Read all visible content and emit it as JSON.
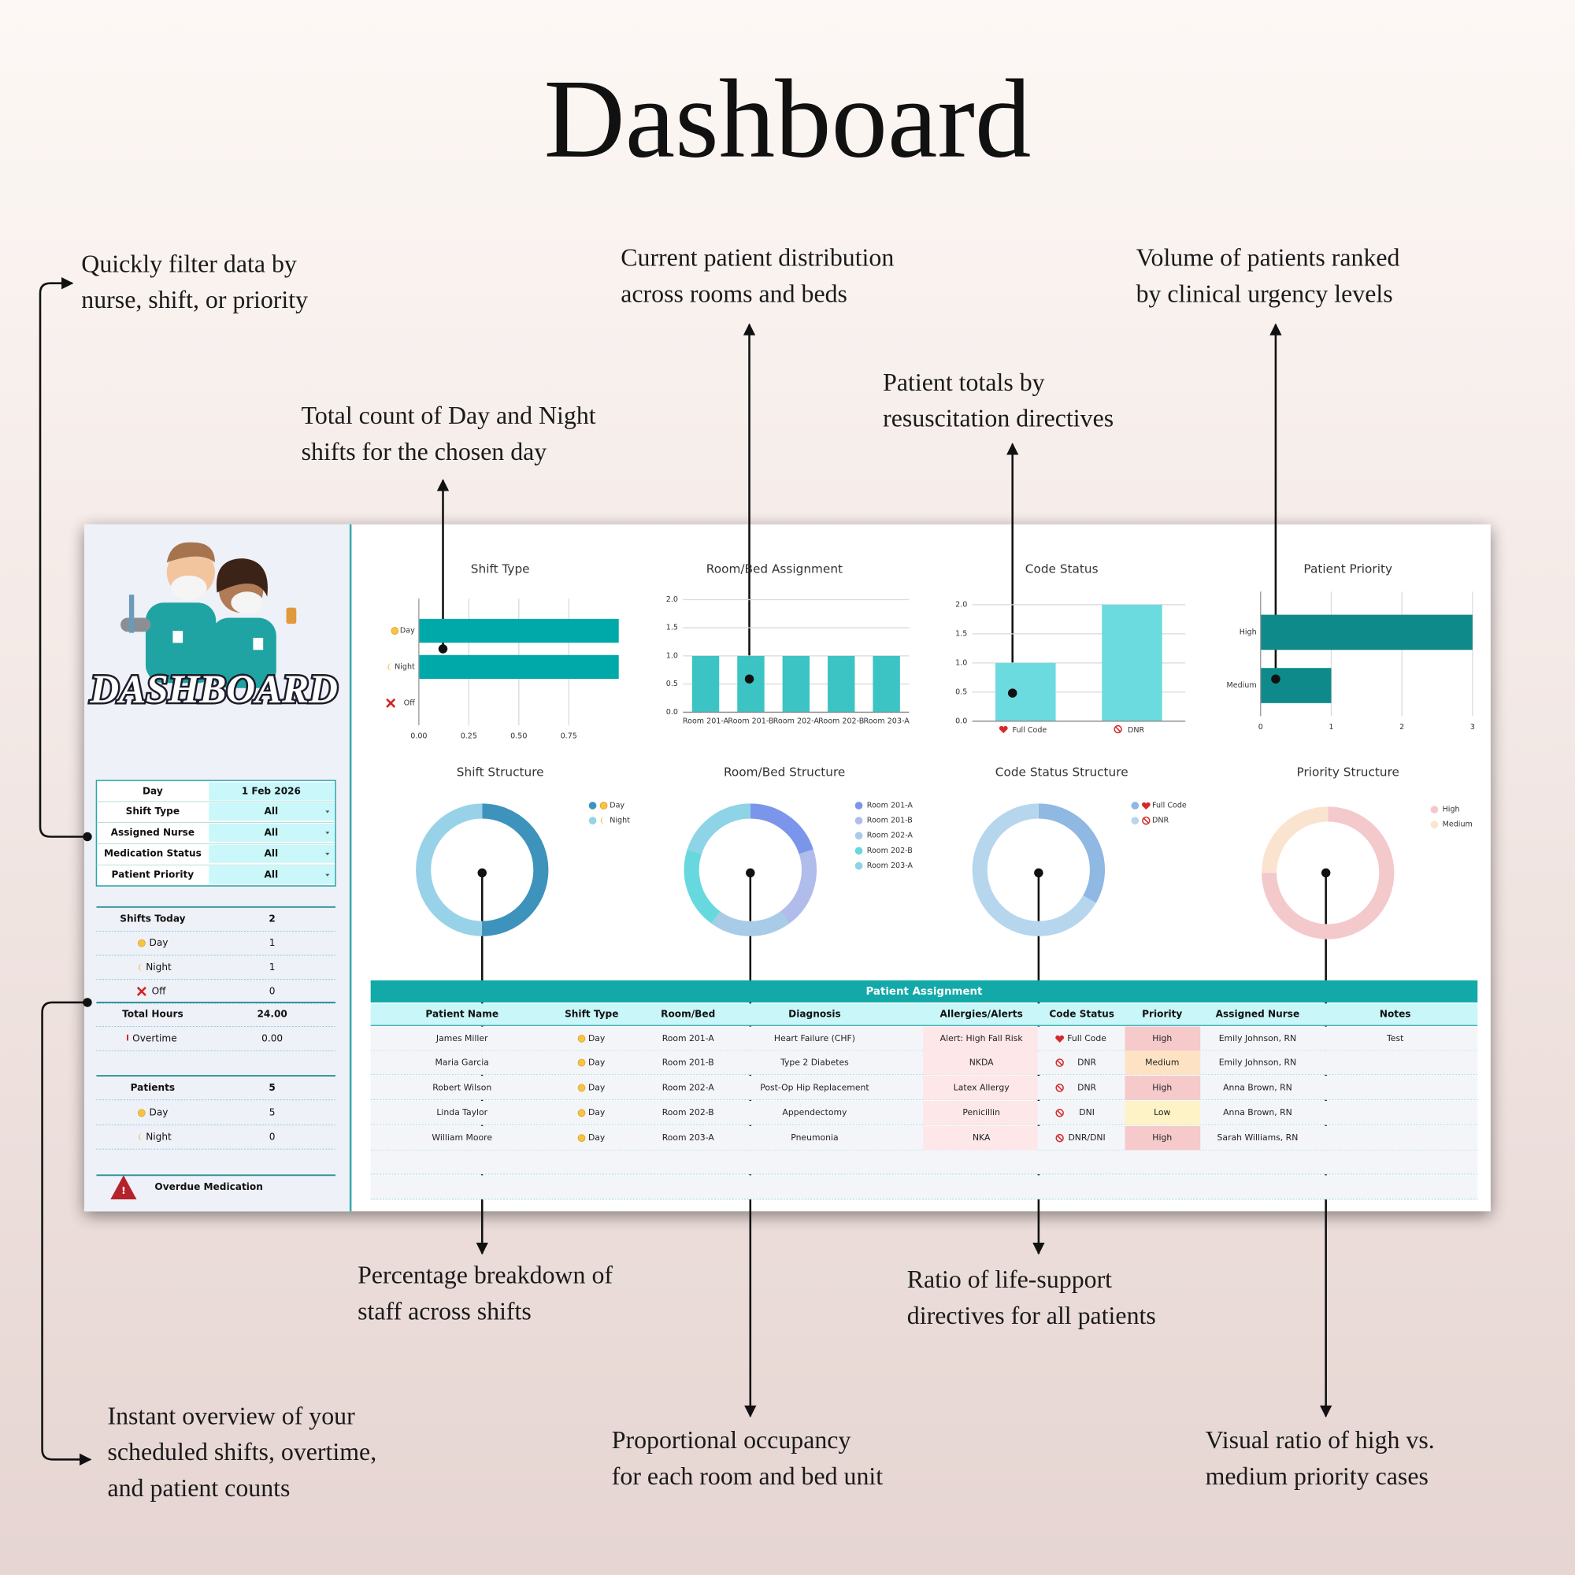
{
  "header": {
    "title": "Dashboard"
  },
  "annotations": [
    {
      "lines": [
        "Quickly filter data by",
        "nurse, shift, or priority"
      ]
    },
    {
      "lines": [
        "Total count of Day and Night",
        "shifts for the chosen day"
      ]
    },
    {
      "lines": [
        "Current patient distribution",
        "across rooms and beds"
      ]
    },
    {
      "lines": [
        "Patient totals by",
        "resuscitation directives"
      ]
    },
    {
      "lines": [
        "Volume of patients ranked",
        "by clinical urgency levels"
      ]
    },
    {
      "lines": [
        "Percentage breakdown of",
        "staff across shifts"
      ]
    },
    {
      "lines": [
        "Ratio of life-support",
        "directives for all patients"
      ]
    },
    {
      "lines": [
        "Instant overview of your",
        "scheduled shifts, overtime,",
        "and patient counts"
      ]
    },
    {
      "lines": [
        "Proportional occupancy",
        "for each room and bed unit"
      ]
    },
    {
      "lines": [
        "Visual ratio of high vs.",
        "medium priority cases"
      ]
    }
  ],
  "sidebar": {
    "logo_text": "DASHBOARD",
    "filters": [
      {
        "label": "Day",
        "value": "1 Feb 2026"
      },
      {
        "label": "Shift Type",
        "value": "All"
      },
      {
        "label": "Assigned Nurse",
        "value": "All"
      },
      {
        "label": "Medication Status",
        "value": "All"
      },
      {
        "label": "Patient Priority",
        "value": "All"
      }
    ],
    "summary": [
      {
        "label": "Shifts Today",
        "value": 2
      },
      {
        "label": "Day",
        "value": 1
      },
      {
        "label": "Night",
        "value": 1
      },
      {
        "label": "Off",
        "value": 0
      },
      {
        "label": "Total Hours",
        "value": "24.00"
      },
      {
        "label": "Overtime",
        "value": "0.00"
      },
      {
        "label": "Patients",
        "value": 5
      },
      {
        "label": "Day",
        "value": 5
      },
      {
        "label": "Night",
        "value": 0
      }
    ],
    "alert": "Overdue Medication"
  },
  "chart_data": [
    {
      "type": "bar",
      "orientation": "horizontal",
      "title": "Shift Type",
      "categories": [
        "Day",
        "Night",
        "Off"
      ],
      "values": [
        1,
        1,
        0
      ],
      "color": "#00a9a9",
      "xlim": [
        0,
        1
      ],
      "xticks": [
        {
          "value": 0,
          "label": "0.00"
        },
        0.25,
        {
          "value": 0.5,
          "label": "0.50"
        },
        0.75
      ],
      "grid": true
    },
    {
      "type": "bar",
      "title": "Room/Bed Assignment",
      "categories": [
        "Room 201-A",
        "Room 201-B",
        "Room 202-A",
        "Room 202-B",
        "Room 203-A"
      ],
      "values": [
        1,
        1,
        1,
        1,
        1
      ],
      "color": "#3cc4c4",
      "ylim": [
        0,
        2
      ],
      "yticks": [
        {
          "value": 0,
          "label": "0.0"
        },
        0.5,
        {
          "value": 1,
          "label": "1.0"
        },
        1.5,
        {
          "value": 2,
          "label": "2.0"
        }
      ],
      "grid": true
    },
    {
      "type": "bar",
      "title": "Code Status",
      "categories": [
        "Full Code",
        "DNR"
      ],
      "values": [
        1,
        2
      ],
      "color": "#6cdbe0",
      "ylim": [
        0,
        2
      ],
      "yticks": [
        {
          "value": 0,
          "label": "0.0"
        },
        0.5,
        {
          "value": 1,
          "label": "1.0"
        },
        1.5,
        {
          "value": 2,
          "label": "2.0"
        }
      ],
      "grid": true
    },
    {
      "type": "bar",
      "orientation": "horizontal",
      "title": "Patient Priority",
      "categories": [
        "High",
        "Medium"
      ],
      "values": [
        3,
        1
      ],
      "color": "#0e8a8a",
      "xlim": [
        0,
        3
      ],
      "xticks": [
        0,
        1,
        2,
        3
      ],
      "grid": true
    },
    {
      "type": "donut",
      "title": "Shift Structure",
      "categories": [
        "Day",
        "Night"
      ],
      "values": [
        1,
        1
      ],
      "colors": [
        "#3e93bd",
        "#98d2e8"
      ]
    },
    {
      "type": "donut",
      "title": "Room/Bed Structure",
      "categories": [
        "Room 201-A",
        "Room 201-B",
        "Room 202-A",
        "Room 202-B",
        "Room 203-A"
      ],
      "values": [
        1,
        1,
        1,
        1,
        1
      ],
      "colors": [
        "#7b95ea",
        "#b0bdeb",
        "#a8cbe8",
        "#67d9de",
        "#8ed3e6"
      ]
    },
    {
      "type": "donut",
      "title": "Code Status Structure",
      "categories": [
        "Full Code",
        "DNR"
      ],
      "values": [
        1,
        2
      ],
      "colors": [
        "#8fb8e2",
        "#b6d6ee"
      ]
    },
    {
      "type": "donut",
      "title": "Priority Structure",
      "categories": [
        "High",
        "Medium"
      ],
      "values": [
        3,
        1
      ],
      "colors": [
        "#f4c9cb",
        "#fbe4cf"
      ]
    }
  ],
  "table": {
    "title": "Patient Assignment",
    "columns": [
      "Patient Name",
      "Shift Type",
      "Room/Bed",
      "Diagnosis",
      "Allergies/Alerts",
      "Code Status",
      "Priority",
      "Assigned Nurse",
      "Notes"
    ],
    "rows": [
      [
        "James Miller",
        "Day",
        "Room 201-A",
        "Heart Failure (CHF)",
        "Alert: High Fall Risk",
        "Full Code",
        "High",
        "Emily Johnson, RN",
        "Test"
      ],
      [
        "Maria Garcia",
        "Day",
        "Room 201-B",
        "Type 2 Diabetes",
        "NKDA",
        "DNR",
        "Medium",
        "Emily Johnson, RN",
        null
      ],
      [
        "Robert Wilson",
        "Day",
        "Room 202-A",
        "Post-Op Hip Replacement",
        "Latex Allergy",
        "DNR",
        "High",
        "Anna Brown, RN",
        null
      ],
      [
        "Linda Taylor",
        "Day",
        "Room 202-B",
        "Appendectomy",
        "Penicillin",
        "DNI",
        "Low",
        "Anna Brown, RN",
        null
      ],
      [
        "William Moore",
        "Day",
        "Room 203-A",
        "Pneumonia",
        "NKA",
        "DNR/DNI",
        "High",
        "Sarah Williams, RN",
        null
      ]
    ]
  }
}
